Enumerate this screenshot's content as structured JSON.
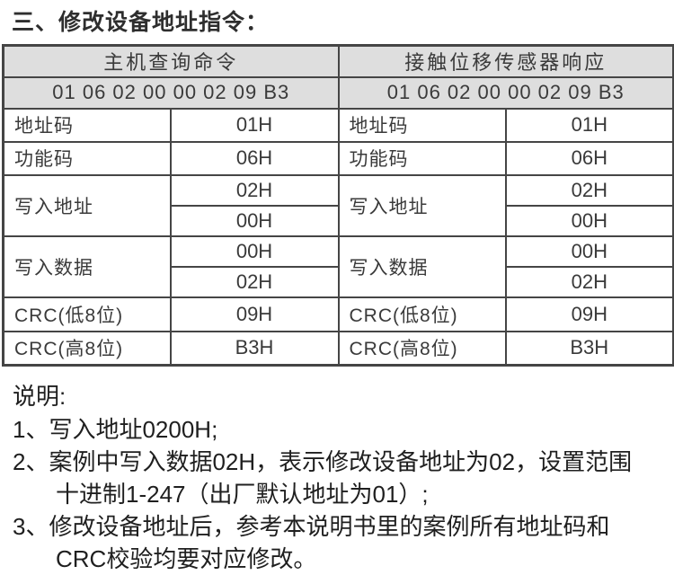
{
  "title": "三、修改设备地址指令：",
  "table": {
    "columns": [
      {
        "header": "主机查询命令",
        "hex": "01 06 02 00 00 02 09 B3",
        "rows": [
          {
            "label": "地址码",
            "values": [
              "01H"
            ]
          },
          {
            "label": "功能码",
            "values": [
              "06H"
            ]
          },
          {
            "label": "写入地址",
            "values": [
              "02H",
              "00H"
            ]
          },
          {
            "label": "写入数据",
            "values": [
              "00H",
              "02H"
            ]
          },
          {
            "label": "CRC(低8位)",
            "values": [
              "09H"
            ]
          },
          {
            "label": "CRC(高8位)",
            "values": [
              "B3H"
            ]
          }
        ]
      },
      {
        "header": "接触位移传感器响应",
        "hex": "01 06 02 00 00 02 09 B3",
        "rows": [
          {
            "label": "地址码",
            "values": [
              "01H"
            ]
          },
          {
            "label": "功能码",
            "values": [
              "06H"
            ]
          },
          {
            "label": "写入地址",
            "values": [
              "02H",
              "00H"
            ]
          },
          {
            "label": "写入数据",
            "values": [
              "00H",
              "02H"
            ]
          },
          {
            "label": "CRC(低8位)",
            "values": [
              "09H"
            ]
          },
          {
            "label": "CRC(高8位)",
            "values": [
              "B3H"
            ]
          }
        ]
      }
    ]
  },
  "notes": {
    "heading": "说明:",
    "items": [
      {
        "lines": [
          "1、写入地址0200H;"
        ]
      },
      {
        "lines": [
          "2、案例中写入数据02H，表示修改设备地址为02，设置范围",
          "十进制1-247（出厂默认地址为01）;"
        ]
      },
      {
        "lines": [
          "3、修改设备地址后，参考本说明书里的案例所有地址码和",
          "CRC校验均要对应修改。"
        ]
      }
    ]
  },
  "colors": {
    "header_bg": "#dedede",
    "border": "#454545",
    "text": "#3a3a3a"
  }
}
